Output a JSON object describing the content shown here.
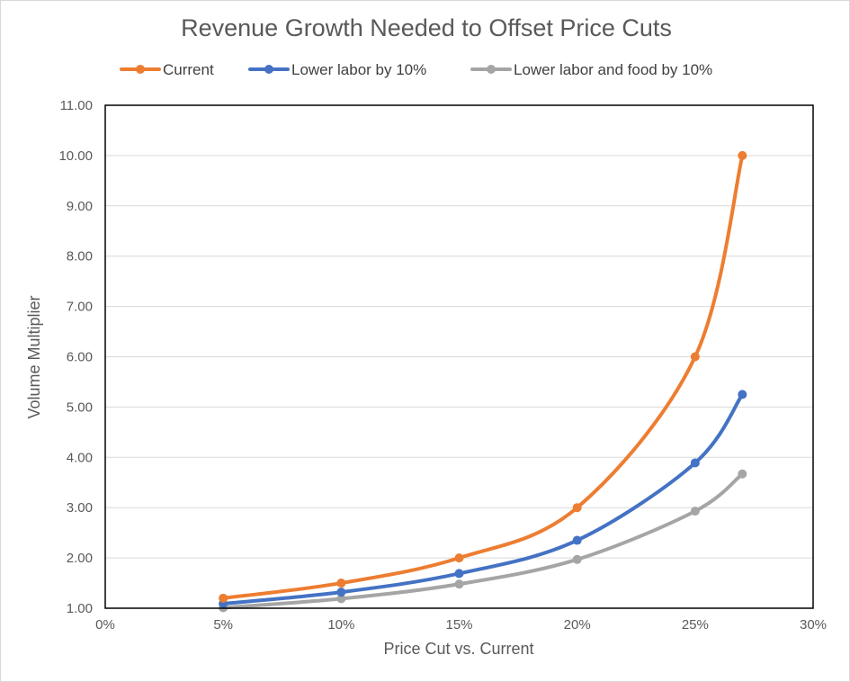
{
  "chart_data": {
    "type": "line",
    "title": "Revenue Growth Needed to Offset Price Cuts",
    "xlabel": "Price Cut vs. Current",
    "ylabel": "Volume Multiplier",
    "xlim": [
      0,
      0.3
    ],
    "ylim": [
      1.0,
      11.0
    ],
    "x_ticks": [
      0,
      0.05,
      0.1,
      0.15,
      0.2,
      0.25,
      0.3
    ],
    "x_tick_labels": [
      "0%",
      "5%",
      "10%",
      "15%",
      "20%",
      "25%",
      "30%"
    ],
    "y_ticks": [
      1,
      2,
      3,
      4,
      5,
      6,
      7,
      8,
      9,
      10,
      11
    ],
    "y_tick_labels": [
      "1.00",
      "2.00",
      "3.00",
      "4.00",
      "5.00",
      "6.00",
      "7.00",
      "8.00",
      "9.00",
      "10.00",
      "11.00"
    ],
    "grid": true,
    "legend_position": "top",
    "x": [
      0.05,
      0.1,
      0.15,
      0.2,
      0.25,
      0.27
    ],
    "series": [
      {
        "name": "Current",
        "color": "#ed7d31",
        "values": [
          1.2,
          1.5,
          2.0,
          3.0,
          6.0,
          10.0
        ]
      },
      {
        "name": "Lower labor by 10%",
        "color": "#4472c4",
        "values": [
          1.09,
          1.32,
          1.69,
          2.35,
          3.89,
          5.25
        ]
      },
      {
        "name": "Lower labor and food by 10%",
        "color": "#a5a5a5",
        "values": [
          1.01,
          1.19,
          1.48,
          1.97,
          2.93,
          3.67
        ]
      }
    ]
  }
}
